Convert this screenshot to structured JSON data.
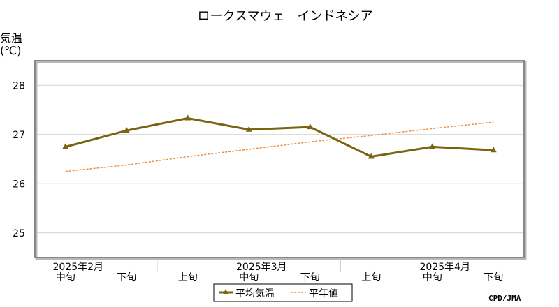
{
  "chart_data": {
    "type": "line",
    "title": "ロークスマウェ　インドネシア",
    "ylabel_line1": "気温",
    "ylabel_line2": "(℃)",
    "ylim": [
      24.5,
      28.5
    ],
    "y_ticks": [
      25,
      26,
      27,
      28
    ],
    "x_labels": [
      "中旬",
      "下旬",
      "上旬",
      "中旬",
      "下旬",
      "上旬",
      "中旬",
      "下旬"
    ],
    "month_labels": [
      "2025年2月",
      "2025年3月",
      "2025年4月"
    ],
    "grid": true,
    "legend_position": "bottom",
    "series": [
      {
        "name": "平均気温",
        "style": "solid-triangle-markers",
        "color": "#7a6410",
        "values": [
          26.75,
          27.08,
          27.33,
          27.1,
          27.15,
          26.55,
          26.75,
          26.68
        ]
      },
      {
        "name": "平年値",
        "style": "dotted",
        "color": "#ee8a33",
        "values": [
          26.25,
          26.38,
          26.55,
          26.7,
          26.85,
          26.98,
          27.12,
          27.25
        ]
      }
    ],
    "credit": "CPD/JMA"
  }
}
